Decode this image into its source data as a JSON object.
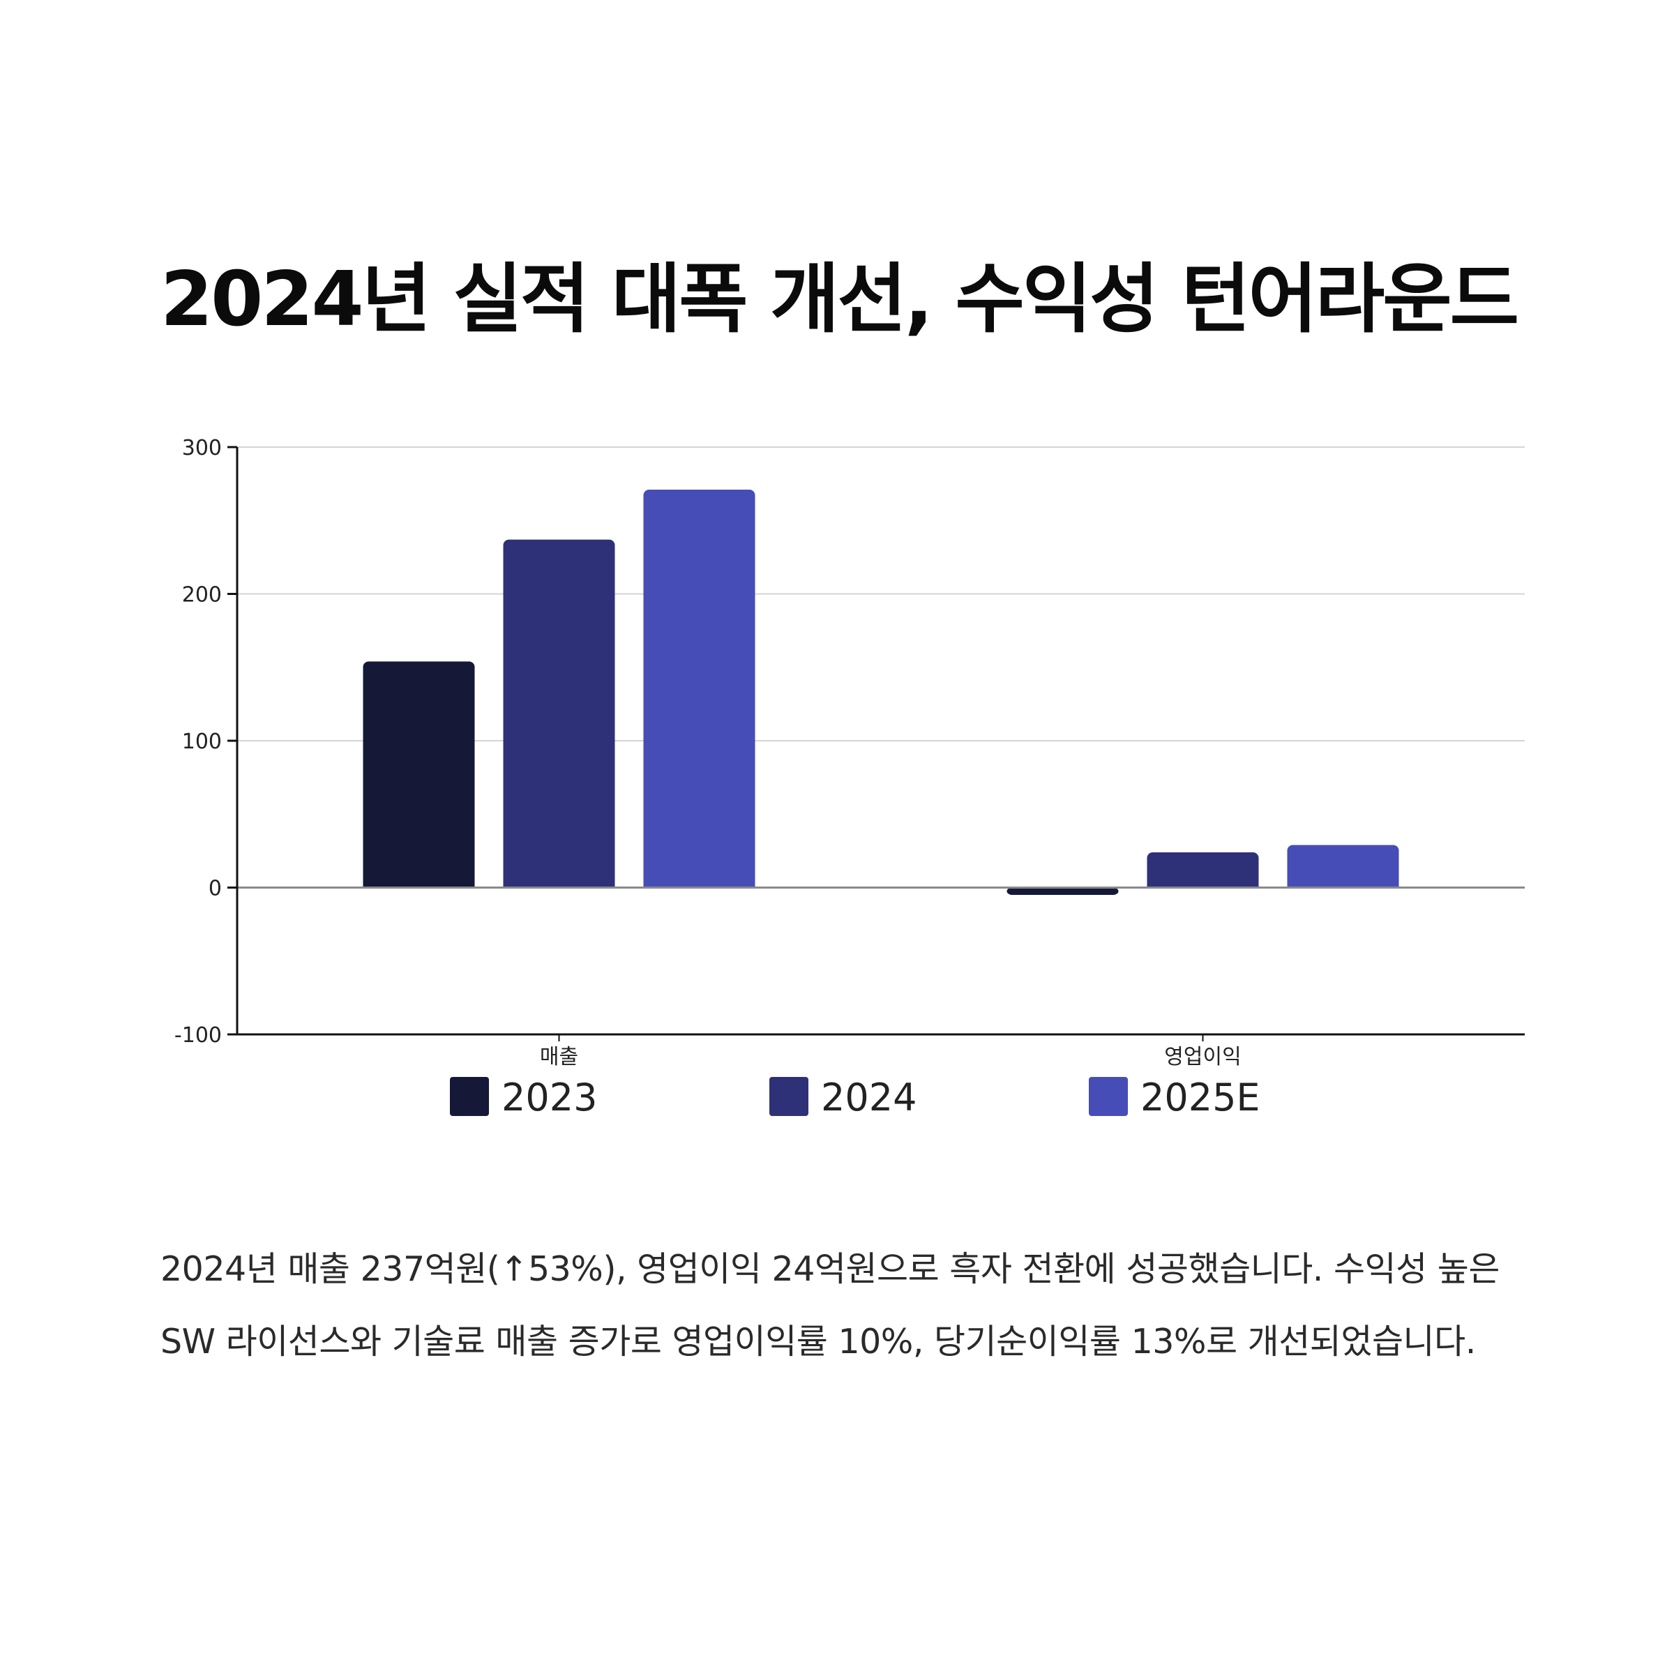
{
  "title": "2024년 실적 대폭 개선, 수익성 턴어라운드",
  "chart_data": {
    "type": "bar",
    "categories": [
      "매출",
      "영업이익"
    ],
    "series": [
      {
        "name": "2023",
        "values": [
          154,
          -5
        ],
        "color": "#151937"
      },
      {
        "name": "2024",
        "values": [
          237,
          24
        ],
        "color": "#2e3177"
      },
      {
        "name": "2025E",
        "values": [
          271,
          29
        ],
        "color": "#464db7"
      }
    ],
    "ylim": [
      -100,
      300
    ],
    "yticks": [
      -100,
      0,
      100,
      200,
      300
    ],
    "grid": true,
    "legend_position": "bottom",
    "xlabel": "",
    "ylabel": ""
  },
  "description": "2024년 매출 237억원(↑53%), 영업이익 24억원으로 흑자 전환에 성공했습니다. 수익성 높은 SW 라이선스와 기술료 매출 증가로 영업이익률 10%, 당기순이익률 13%로 개선되었습니다."
}
